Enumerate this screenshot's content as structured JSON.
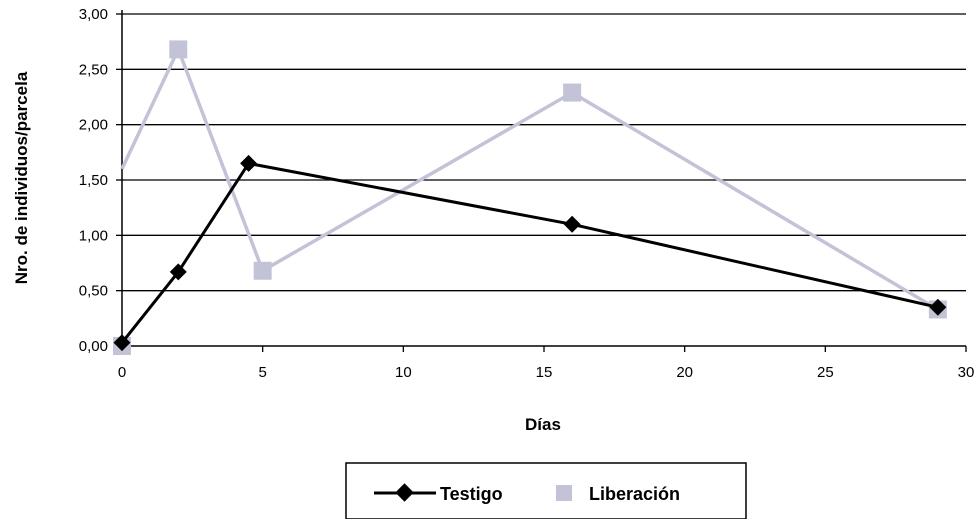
{
  "chart_data": {
    "type": "line",
    "xlabel": "Días",
    "ylabel": "Nro. de individuos/parcela",
    "xlim": [
      0,
      30
    ],
    "ylim": [
      0,
      3
    ],
    "x_ticks": [
      "0",
      "5",
      "10",
      "15",
      "20",
      "25",
      "30"
    ],
    "x_tick_values": [
      0,
      5,
      10,
      15,
      20,
      25,
      30
    ],
    "y_ticks": [
      "0,00",
      "0,50",
      "1,00",
      "1,50",
      "2,00",
      "2,50",
      "3,00"
    ],
    "y_tick_values": [
      0,
      0.5,
      1,
      1.5,
      2,
      2.5,
      3
    ],
    "grid": "horizontal",
    "legend_position": "bottom",
    "series": [
      {
        "name": "Testigo",
        "color": "#000000",
        "marker": "diamond",
        "x": [
          0,
          2,
          4.5,
          16,
          29
        ],
        "y": [
          0.03,
          0.67,
          1.65,
          1.1,
          0.35
        ]
      },
      {
        "name": "Liberación",
        "color": "#c3c3d8",
        "marker": "square",
        "x": [
          0,
          2,
          5,
          16,
          29
        ],
        "y": [
          1.6,
          2.68,
          0.68,
          2.29,
          0.33
        ],
        "marker_x": [
          0,
          2,
          5,
          16,
          29
        ],
        "marker_y": [
          0.0,
          2.68,
          0.68,
          2.29,
          0.33
        ]
      }
    ]
  }
}
